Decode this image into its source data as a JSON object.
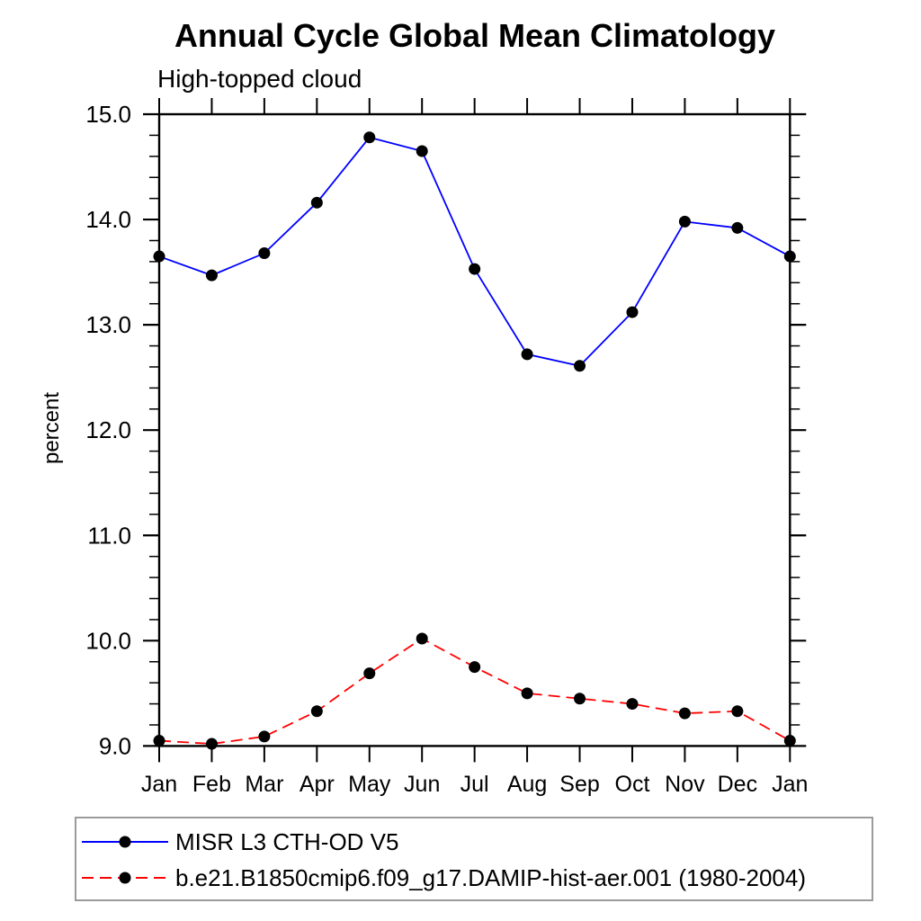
{
  "title": "Annual Cycle Global Mean Climatology",
  "subtitle": "High-topped cloud",
  "ylabel": "percent",
  "chart_data": {
    "type": "line",
    "title": "Annual Cycle Global Mean Climatology",
    "subtitle": "High-topped cloud",
    "xlabel": "",
    "ylabel": "percent",
    "categories": [
      "Jan",
      "Feb",
      "Mar",
      "Apr",
      "May",
      "Jun",
      "Jul",
      "Aug",
      "Sep",
      "Oct",
      "Nov",
      "Dec",
      "Jan"
    ],
    "series": [
      {
        "name": "MISR L3 CTH-OD V5",
        "color": "#0000ff",
        "line_style": "solid",
        "dasharray": "none",
        "marker": "circle",
        "marker_color": "#000000",
        "values": [
          13.65,
          13.47,
          13.68,
          14.16,
          14.78,
          14.65,
          13.53,
          12.72,
          12.61,
          13.12,
          13.98,
          13.92,
          13.65
        ]
      },
      {
        "name": "b.e21.B1850cmip6.f09_g17.DAMIP-hist-aer.001 (1980-2004)",
        "color": "#ff0000",
        "line_style": "dashed",
        "dasharray": "13 7",
        "marker": "circle",
        "marker_color": "#000000",
        "values": [
          9.05,
          9.02,
          9.09,
          9.33,
          9.69,
          10.02,
          9.75,
          9.5,
          9.45,
          9.4,
          9.31,
          9.33,
          9.05
        ]
      }
    ],
    "ylim": [
      9.0,
      15.0
    ],
    "yticks": [
      9.0,
      10.0,
      11.0,
      12.0,
      13.0,
      14.0,
      15.0
    ],
    "ytick_labels": [
      "9.0",
      "10.0",
      "11.0",
      "12.0",
      "13.0",
      "14.0",
      "15.0"
    ],
    "ytick_minor_step": 0.2,
    "grid": false,
    "legend_position": "bottom-left",
    "axis_color": "#000000"
  }
}
